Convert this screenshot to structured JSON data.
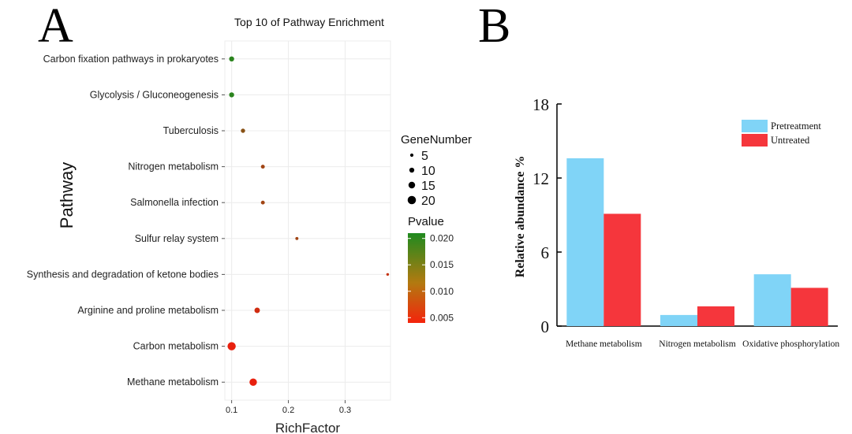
{
  "panel_a_letter": "A",
  "panel_b_letter": "B",
  "chart_data": [
    {
      "type": "scatter",
      "title": "Top 10 of Pathway Enrichment",
      "xlabel": "RichFactor",
      "ylabel": "Pathway",
      "xlim": [
        0.088,
        0.38
      ],
      "xticks": [
        0.1,
        0.2,
        0.3
      ],
      "grid": true,
      "legend_placement": "right",
      "size_legend": {
        "title": "GeneNumber",
        "values": [
          5,
          10,
          15,
          20
        ]
      },
      "color_legend": {
        "title": "Pvalue",
        "ticks": [
          0.02,
          0.015,
          0.01,
          0.005
        ],
        "tick_labels": [
          "0.020",
          "0.015",
          "0.010",
          "0.005"
        ],
        "low_color": "#e8200e",
        "high_color": "#1f8a1f",
        "range": [
          0.004,
          0.021
        ]
      },
      "categories": [
        "Carbon fixation pathways in prokaryotes",
        "Glycolysis / Gluconeogenesis",
        "Tuberculosis",
        "Nitrogen metabolism",
        "Salmonella infection",
        "Sulfur relay system",
        "Synthesis and degradation of ketone bodies",
        "Arginine and proline metabolism",
        "Carbon metabolism",
        "Methane metabolism"
      ],
      "points": [
        {
          "pathway": "Carbon fixation pathways in prokaryotes",
          "richfactor": 0.1,
          "gene_number": 8,
          "pvalue": 0.02
        },
        {
          "pathway": "Glycolysis / Gluconeogenesis",
          "richfactor": 0.1,
          "gene_number": 8,
          "pvalue": 0.02
        },
        {
          "pathway": "Tuberculosis",
          "richfactor": 0.12,
          "gene_number": 6,
          "pvalue": 0.012
        },
        {
          "pathway": "Nitrogen metabolism",
          "richfactor": 0.155,
          "gene_number": 5,
          "pvalue": 0.01
        },
        {
          "pathway": "Salmonella infection",
          "richfactor": 0.155,
          "gene_number": 5,
          "pvalue": 0.01
        },
        {
          "pathway": "Sulfur relay system",
          "richfactor": 0.215,
          "gene_number": 3,
          "pvalue": 0.01
        },
        {
          "pathway": "Synthesis and degradation of ketone bodies",
          "richfactor": 0.375,
          "gene_number": 2,
          "pvalue": 0.007
        },
        {
          "pathway": "Arginine and proline metabolism",
          "richfactor": 0.145,
          "gene_number": 9,
          "pvalue": 0.006
        },
        {
          "pathway": "Carbon metabolism",
          "richfactor": 0.1,
          "gene_number": 16,
          "pvalue": 0.004
        },
        {
          "pathway": "Methane metabolism",
          "richfactor": 0.138,
          "gene_number": 14,
          "pvalue": 0.004
        }
      ]
    },
    {
      "type": "bar",
      "title": "",
      "xlabel": "",
      "ylabel": "Relative abundance %",
      "ylim": [
        0,
        18
      ],
      "yticks": [
        0,
        6,
        12,
        18
      ],
      "grid": false,
      "legend_placement": "top-right",
      "categories": [
        "Methane metabolism",
        "Nitrogen metabolism",
        "Oxidative phosphorylation"
      ],
      "series": [
        {
          "name": "Pretreatment",
          "color": "#80d4f7",
          "values": [
            13.6,
            0.9,
            4.2
          ]
        },
        {
          "name": "Untreated",
          "color": "#f5363c",
          "values": [
            9.1,
            1.6,
            3.1
          ]
        }
      ]
    }
  ]
}
